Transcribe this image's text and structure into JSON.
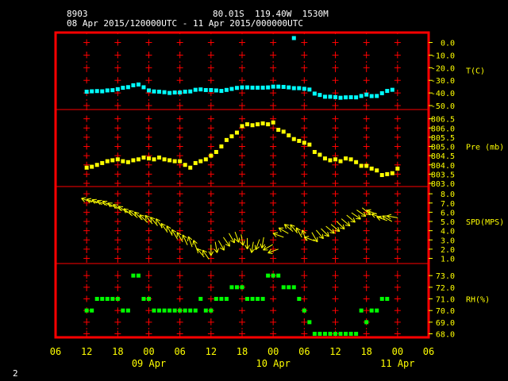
{
  "header": {
    "station_id": "8903",
    "coords": "80.01S  119.40W  1530M",
    "date_range": "08 Apr 2015/120000UTC - 11 Apr 2015/000000UTC"
  },
  "footer": {
    "page_number": "2"
  },
  "colors": {
    "frame": "#ff0000",
    "divider": "#ff0000",
    "grid": "#ff0000",
    "axis_text": "#ffff00",
    "temperature": "#00ffff",
    "pressure": "#ffff00",
    "wind": "#ffff00",
    "humidity": "#00ff00"
  },
  "chart_data": {
    "type": "scatter",
    "x_axis": {
      "tick_labels": [
        "06",
        "12",
        "18",
        "00",
        "06",
        "12",
        "18",
        "00",
        "06",
        "12",
        "18",
        "00",
        "06"
      ],
      "date_labels": [
        {
          "label": "09 Apr",
          "at_hour": 24
        },
        {
          "label": "10 Apr",
          "at_hour": 48
        },
        {
          "label": "11 Apr",
          "at_hour": 72
        }
      ],
      "range_hours": [
        6,
        78
      ],
      "note_hours": "hours after 08 Apr 2015 00 UTC"
    },
    "grid": true,
    "panels": [
      {
        "name": "temperature",
        "label": "T(C)",
        "ylim": [
          -50,
          6
        ],
        "ticks": [
          "0.0",
          "-10.0",
          "-20.0",
          "-30.0",
          "-40.0",
          "-50.0"
        ],
        "tick_values": [
          0,
          -10,
          -20,
          -30,
          -40,
          -50
        ],
        "color_key": "temperature",
        "points": [
          [
            12,
            -39
          ],
          [
            13,
            -38.7
          ],
          [
            14,
            -38.5
          ],
          [
            15,
            -38.7
          ],
          [
            16,
            -38
          ],
          [
            17,
            -37.8
          ],
          [
            18,
            -37
          ],
          [
            19,
            -35.9
          ],
          [
            20,
            -35.4
          ],
          [
            21,
            -33.9
          ],
          [
            22,
            -33.3
          ],
          [
            23,
            -35.5
          ],
          [
            24,
            -38
          ],
          [
            25,
            -38.8
          ],
          [
            26,
            -39
          ],
          [
            27,
            -39.4
          ],
          [
            28,
            -40
          ],
          [
            29,
            -39.6
          ],
          [
            30,
            -39.6
          ],
          [
            31,
            -39
          ],
          [
            32,
            -38.8
          ],
          [
            33,
            -37.5
          ],
          [
            34,
            -37.2
          ],
          [
            35,
            -37.7
          ],
          [
            36,
            -37.7
          ],
          [
            37,
            -38
          ],
          [
            38,
            -38.4
          ],
          [
            39,
            -37.6
          ],
          [
            40,
            -36.8
          ],
          [
            41,
            -36
          ],
          [
            42,
            -35.6
          ],
          [
            43,
            -35.6
          ],
          [
            44,
            -35.8
          ],
          [
            45,
            -35.8
          ],
          [
            46,
            -35.8
          ],
          [
            47,
            -35.6
          ],
          [
            48,
            -35
          ],
          [
            49,
            -35
          ],
          [
            50,
            -35.2
          ],
          [
            51,
            -35.6
          ],
          [
            52,
            -36.2
          ],
          [
            53,
            -36.2
          ],
          [
            54,
            -36.7
          ],
          [
            55,
            -37.3
          ],
          [
            56,
            -40.5
          ],
          [
            57,
            -41.6
          ],
          [
            58,
            -43
          ],
          [
            59,
            -43
          ],
          [
            60,
            -43.3
          ],
          [
            61,
            -43.8
          ],
          [
            62,
            -43.5
          ],
          [
            63,
            -43.4
          ],
          [
            64,
            -43.5
          ],
          [
            65,
            -42.4
          ],
          [
            66,
            -41.3
          ],
          [
            67,
            -42.5
          ],
          [
            68,
            -42.4
          ],
          [
            69,
            -40.2
          ],
          [
            70,
            -38.4
          ],
          [
            71,
            -37.5
          ],
          [
            52,
            3.5
          ]
        ]
      },
      {
        "name": "pressure",
        "label": "Pre (mb)",
        "ylim": [
          803.0,
          807.0
        ],
        "ticks": [
          "806.5",
          "806.0",
          "805.5",
          "805.0",
          "804.5",
          "804.0",
          "803.5",
          "803.0"
        ],
        "tick_values": [
          806.5,
          806.0,
          805.5,
          805.0,
          804.5,
          804.0,
          803.5,
          803.0
        ],
        "color_key": "pressure",
        "points": [
          [
            12,
            803.85
          ],
          [
            13,
            803.9
          ],
          [
            14,
            804.0
          ],
          [
            15,
            804.1
          ],
          [
            16,
            804.2
          ],
          [
            17,
            804.25
          ],
          [
            18,
            804.3
          ],
          [
            19,
            804.2
          ],
          [
            20,
            804.15
          ],
          [
            21,
            804.25
          ],
          [
            22,
            804.3
          ],
          [
            23,
            804.4
          ],
          [
            24,
            804.35
          ],
          [
            25,
            804.3
          ],
          [
            26,
            804.4
          ],
          [
            27,
            804.3
          ],
          [
            28,
            804.25
          ],
          [
            29,
            804.2
          ],
          [
            30,
            804.2
          ],
          [
            31,
            804.0
          ],
          [
            32,
            803.85
          ],
          [
            33,
            804.1
          ],
          [
            34,
            804.2
          ],
          [
            35,
            804.3
          ],
          [
            36,
            804.5
          ],
          [
            37,
            804.7
          ],
          [
            38,
            805.0
          ],
          [
            39,
            805.35
          ],
          [
            40,
            805.55
          ],
          [
            41,
            805.75
          ],
          [
            42,
            806.1
          ],
          [
            43,
            806.2
          ],
          [
            44,
            806.15
          ],
          [
            45,
            806.2
          ],
          [
            46,
            806.25
          ],
          [
            47,
            806.2
          ],
          [
            48,
            806.3
          ],
          [
            49,
            805.9
          ],
          [
            50,
            805.8
          ],
          [
            51,
            805.6
          ],
          [
            52,
            805.4
          ],
          [
            53,
            805.3
          ],
          [
            54,
            805.2
          ],
          [
            55,
            805.1
          ],
          [
            56,
            804.7
          ],
          [
            57,
            804.55
          ],
          [
            58,
            804.35
          ],
          [
            59,
            804.25
          ],
          [
            60,
            804.3
          ],
          [
            61,
            804.2
          ],
          [
            62,
            804.35
          ],
          [
            63,
            804.3
          ],
          [
            64,
            804.15
          ],
          [
            65,
            803.95
          ],
          [
            66,
            803.95
          ],
          [
            67,
            803.8
          ],
          [
            68,
            803.7
          ],
          [
            69,
            803.45
          ],
          [
            70,
            803.5
          ],
          [
            71,
            803.55
          ],
          [
            72,
            803.8
          ]
        ]
      },
      {
        "name": "wind_speed",
        "label": "SPD(MPS)",
        "ylim": [
          0.7,
          8.7
        ],
        "ticks": [
          "8.0",
          "7.0",
          "6.0",
          "5.0",
          "4.0",
          "3.0",
          "2.0",
          "1.0"
        ],
        "tick_values": [
          8,
          7,
          6,
          5,
          4,
          3,
          2,
          1
        ],
        "color_key": "wind",
        "arrows": [
          [
            12,
            7.3,
            200
          ],
          [
            13,
            7.2,
            200
          ],
          [
            14,
            7.1,
            205
          ],
          [
            15,
            7.0,
            205
          ],
          [
            16,
            6.9,
            210
          ],
          [
            17,
            6.7,
            210
          ],
          [
            18,
            6.5,
            215
          ],
          [
            19,
            6.3,
            215
          ],
          [
            20,
            6.0,
            220
          ],
          [
            21,
            5.8,
            220
          ],
          [
            22,
            5.6,
            225
          ],
          [
            23,
            5.3,
            225
          ],
          [
            24,
            5.2,
            230
          ],
          [
            25,
            5.0,
            230
          ],
          [
            26,
            4.8,
            235
          ],
          [
            27,
            4.3,
            235
          ],
          [
            28,
            4.0,
            240
          ],
          [
            29,
            3.6,
            240
          ],
          [
            30,
            3.3,
            240
          ],
          [
            31,
            3.0,
            245
          ],
          [
            32,
            2.8,
            250
          ],
          [
            33,
            2.4,
            250
          ],
          [
            34,
            1.6,
            230
          ],
          [
            35,
            1.4,
            235
          ],
          [
            36,
            1.9,
            90
          ],
          [
            37,
            2.2,
            80
          ],
          [
            38,
            2.4,
            60
          ],
          [
            39,
            2.8,
            55
          ],
          [
            40,
            3.2,
            60
          ],
          [
            41,
            3.3,
            70
          ],
          [
            42,
            3.0,
            80
          ],
          [
            43,
            2.6,
            90
          ],
          [
            44,
            2.2,
            100
          ],
          [
            45,
            2.5,
            110
          ],
          [
            46,
            2.7,
            100
          ],
          [
            47,
            2.2,
            150
          ],
          [
            48,
            1.8,
            160
          ],
          [
            49,
            3.5,
            200
          ],
          [
            50,
            4.0,
            210
          ],
          [
            51,
            4.3,
            220
          ],
          [
            52,
            4.2,
            230
          ],
          [
            53,
            3.8,
            240
          ],
          [
            54,
            3.5,
            250
          ],
          [
            55,
            3.1,
            200
          ],
          [
            56,
            3.3,
            60
          ],
          [
            57,
            3.6,
            50
          ],
          [
            58,
            3.8,
            45
          ],
          [
            59,
            4.1,
            40
          ],
          [
            60,
            4.3,
            40
          ],
          [
            61,
            4.6,
            45
          ],
          [
            62,
            4.9,
            40
          ],
          [
            63,
            5.3,
            40
          ],
          [
            64,
            5.6,
            35
          ],
          [
            65,
            5.9,
            35
          ],
          [
            66,
            6.1,
            40
          ],
          [
            67,
            6.0,
            200
          ],
          [
            68,
            5.6,
            200
          ],
          [
            69,
            5.3,
            200
          ],
          [
            70,
            5.3,
            210
          ],
          [
            71,
            5.5,
            190
          ]
        ]
      },
      {
        "name": "humidity",
        "label": "RH(%)",
        "ylim": [
          67.9,
          73.9
        ],
        "ticks": [
          "73.0",
          "72.0",
          "71.0",
          "70.0",
          "69.0",
          "68.0"
        ],
        "tick_values": [
          73,
          72,
          71,
          70,
          69,
          68
        ],
        "color_key": "humidity",
        "points": [
          [
            12,
            70
          ],
          [
            13,
            70
          ],
          [
            14,
            71
          ],
          [
            15,
            71
          ],
          [
            16,
            71
          ],
          [
            17,
            71
          ],
          [
            18,
            71
          ],
          [
            19,
            70
          ],
          [
            20,
            70
          ],
          [
            21,
            73
          ],
          [
            22,
            73
          ],
          [
            23,
            71
          ],
          [
            24,
            71
          ],
          [
            25,
            70
          ],
          [
            26,
            70
          ],
          [
            27,
            70
          ],
          [
            28,
            70
          ],
          [
            29,
            70
          ],
          [
            30,
            70
          ],
          [
            31,
            70
          ],
          [
            32,
            70
          ],
          [
            33,
            70
          ],
          [
            34,
            71
          ],
          [
            35,
            70
          ],
          [
            36,
            70
          ],
          [
            37,
            71
          ],
          [
            38,
            71
          ],
          [
            39,
            71
          ],
          [
            40,
            72
          ],
          [
            41,
            72
          ],
          [
            42,
            72
          ],
          [
            43,
            71
          ],
          [
            44,
            71
          ],
          [
            45,
            71
          ],
          [
            46,
            71
          ],
          [
            47,
            73
          ],
          [
            48,
            73
          ],
          [
            49,
            73
          ],
          [
            50,
            72
          ],
          [
            51,
            72
          ],
          [
            52,
            72
          ],
          [
            53,
            71
          ],
          [
            54,
            70
          ],
          [
            55,
            69
          ],
          [
            56,
            68
          ],
          [
            57,
            68
          ],
          [
            58,
            68
          ],
          [
            59,
            68
          ],
          [
            60,
            68
          ],
          [
            61,
            68
          ],
          [
            62,
            68
          ],
          [
            63,
            68
          ],
          [
            64,
            68
          ],
          [
            65,
            70
          ],
          [
            66,
            69
          ],
          [
            67,
            70
          ],
          [
            68,
            70
          ],
          [
            69,
            71
          ],
          [
            70,
            71
          ]
        ]
      }
    ]
  }
}
